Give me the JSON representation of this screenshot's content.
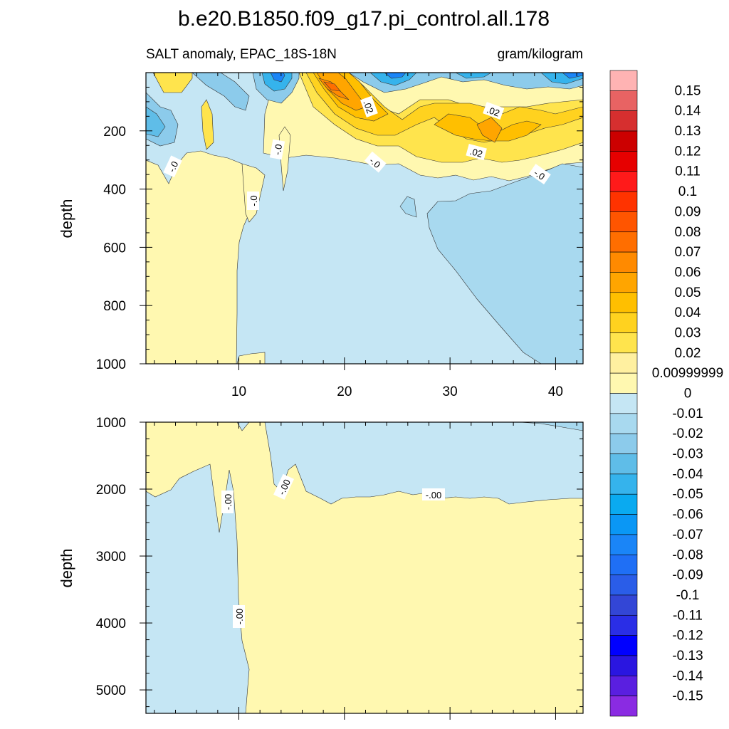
{
  "title": "b.e20.B1850.f09_g17.pi_control.all.178",
  "subtitle_left": "SALT anomaly, EPAC_18S-18N",
  "subtitle_right": "gram/kilogram",
  "chart_data": [
    {
      "type": "contour",
      "panel": "upper",
      "ylabel": "depth",
      "xlim": [
        1.2,
        42.6
      ],
      "ylim": [
        1000,
        0
      ],
      "x_ticks": [
        "10",
        "20",
        "30",
        "40"
      ],
      "x_tick_values": [
        10,
        20,
        30,
        40
      ],
      "y_ticks": [
        "200",
        "400",
        "600",
        "800",
        "1000"
      ],
      "y_tick_values": [
        200,
        400,
        600,
        800,
        1000
      ],
      "contour_labels": [
        "-.0",
        "-.0",
        "-.0",
        "-.0",
        "-.0",
        ".02",
        ".02",
        ".02",
        "-.0",
        "-.0"
      ]
    },
    {
      "type": "contour",
      "panel": "lower",
      "ylabel": "depth",
      "xlim": [
        1.2,
        42.6
      ],
      "ylim": [
        5350,
        1000
      ],
      "x_tick_values": [
        10,
        20,
        30,
        40
      ],
      "y_ticks": [
        "1000",
        "2000",
        "3000",
        "4000",
        "5000"
      ],
      "y_tick_values": [
        1000,
        2000,
        3000,
        4000,
        5000
      ],
      "contour_labels": [
        "-.00",
        "-.00",
        "-.00",
        "-.00"
      ]
    }
  ],
  "colorbar": {
    "labels": [
      "0.15",
      "0.14",
      "0.13",
      "0.12",
      "0.11",
      "0.1",
      "0.09",
      "0.08",
      "0.07",
      "0.06",
      "0.05",
      "0.04",
      "0.03",
      "0.02",
      "0.00999999",
      "0",
      "-0.01",
      "-0.02",
      "-0.03",
      "-0.04",
      "-0.05",
      "-0.06",
      "-0.07",
      "-0.08",
      "-0.09",
      "-0.1",
      "-0.11",
      "-0.12",
      "-0.13",
      "-0.14",
      "-0.15"
    ],
    "colors": [
      "#ffb3b3",
      "#e86363",
      "#d62f2f",
      "#cc0000",
      "#e60000",
      "#ff1a1a",
      "#ff3300",
      "#ff5500",
      "#ff6e00",
      "#ff8a00",
      "#ffa500",
      "#ffbf00",
      "#ffd21f",
      "#ffe44d",
      "#fff0a0",
      "#fff8b0",
      "#c5e6f4",
      "#a8d9ef",
      "#8ccbeb",
      "#5fbde8",
      "#35b3ec",
      "#0aaaf0",
      "#0a97f5",
      "#1a85f7",
      "#1f6ff5",
      "#2a5de8",
      "#3346d6",
      "#2a2ee6",
      "#0000ff",
      "#2a16e0",
      "#5a1fe0",
      "#8a2be2"
    ]
  }
}
